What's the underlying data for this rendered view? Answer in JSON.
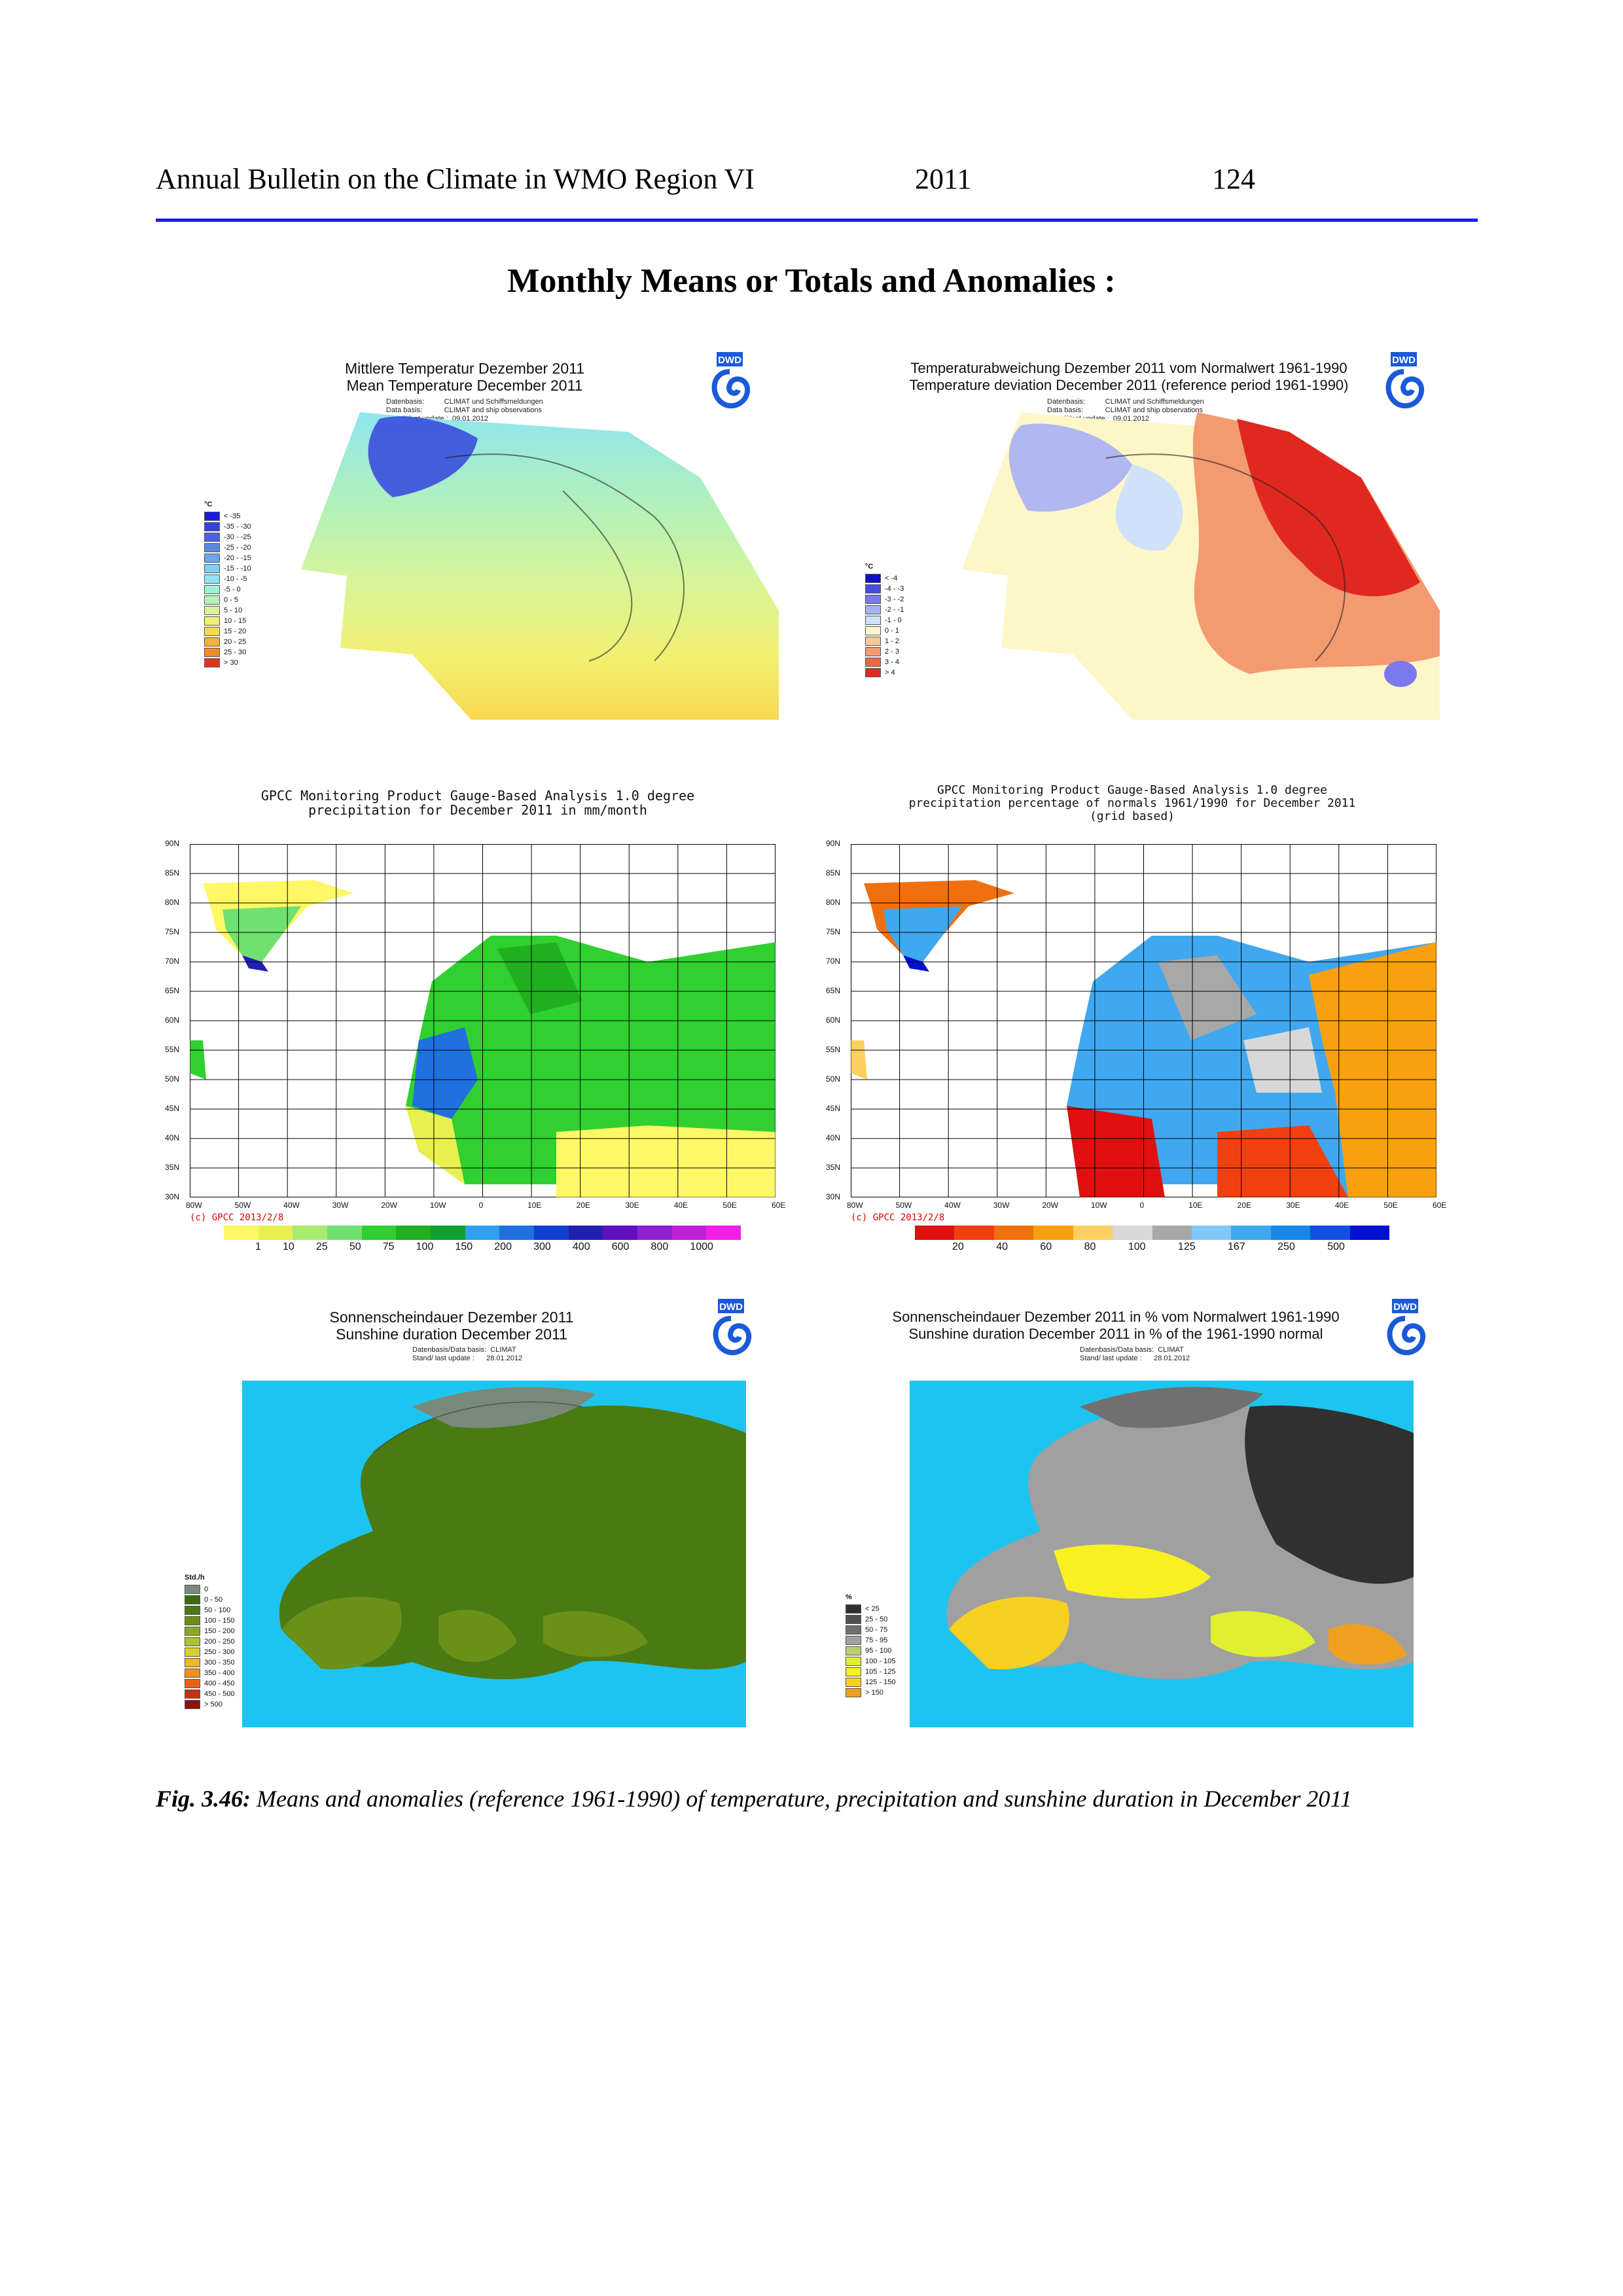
{
  "header": {
    "left": "Annual Bulletin on the Climate in WMO Region VI",
    "year": "2011",
    "page": "124"
  },
  "page_title": "Monthly Means or Totals and Anomalies :",
  "dwd_logo": "DWD",
  "panels": {
    "temp_mean": {
      "title_de": "Mittlere Temperatur Dezember 2011",
      "title_en": "Mean Temperature December 2011",
      "meta": "Datenbasis:          CLIMAT und Schiffsmeldungen\nData basis:           CLIMAT and ship observations\nStand/ last update :  09.01.2012",
      "legend_unit": "°C",
      "legend": [
        "< -35",
        "-35 - -30",
        "-30 - -25",
        "-25 - -20",
        "-20 - -15",
        "-15 - -10",
        "-10 - -5",
        "-5 - 0",
        "0 - 5",
        "5 - 10",
        "10 - 15",
        "15 - 20",
        "20 - 25",
        "25 - 30",
        "> 30"
      ],
      "colors": [
        "#1a1ae0",
        "#3344dd",
        "#4a62e0",
        "#5a86e6",
        "#68a6ee",
        "#7cd0f4",
        "#8fe6ee",
        "#9ff0d8",
        "#b8f2b4",
        "#d8f49a",
        "#f2f070",
        "#f8d850",
        "#f6b038",
        "#f08a2a",
        "#e83020"
      ]
    },
    "temp_anom": {
      "title_de": "Temperaturabweichung Dezember 2011 vom Normalwert 1961-1990",
      "title_en": "Temperature deviation December 2011 (reference period 1961-1990)",
      "meta": "Datenbasis:          CLIMAT und Schiffsmeldungen\nData basis:           CLIMAT and ship observations\nStand/ last update :  09.01.2012",
      "legend_unit": "°C",
      "legend": [
        "< -4",
        "-4 - -3",
        "-3 - -2",
        "-2 - -1",
        "-1 - 0",
        "0 - 1",
        "1 - 2",
        "2 - 3",
        "3 - 4",
        "> 4"
      ],
      "colors": [
        "#1010c8",
        "#4a4ae0",
        "#7a7aee",
        "#a8b0f4",
        "#cfe2fa",
        "#fdf6c8",
        "#f8c898",
        "#f49a70",
        "#ee6648",
        "#e02820"
      ]
    },
    "precip": {
      "title_l1": "GPCC Monitoring Product Gauge-Based Analysis 1.0 degree",
      "title_l2": "precipitation for December  2011 in mm/month",
      "copyright": "(c) GPCC 2013/2/8",
      "colorbar_labels": [
        "1",
        "10",
        "25",
        "50",
        "75",
        "100",
        "150",
        "200",
        "300",
        "400",
        "600",
        "800",
        "1000"
      ],
      "colorbar_colors": [
        "#fff866",
        "#e8f050",
        "#a8ec70",
        "#70e070",
        "#30d030",
        "#20b020",
        "#10a030",
        "#30a0f0",
        "#2070e0",
        "#1040d0",
        "#2020b0",
        "#6010c0",
        "#9020d0",
        "#c020d8",
        "#f020e8"
      ]
    },
    "precip_pct": {
      "title_l1": "GPCC Monitoring Product Gauge-Based Analysis 1.0 degree",
      "title_l2": "precipitation percentage of normals 1961/1990 for December  2011",
      "title_l3": "(grid based)",
      "copyright": "(c) GPCC 2013/2/8",
      "colorbar_labels": [
        "20",
        "40",
        "60",
        "80",
        "100",
        "125",
        "167",
        "250",
        "500"
      ],
      "colorbar_colors": [
        "#e01010",
        "#f04010",
        "#f07010",
        "#f8a010",
        "#fcd060",
        "#d8d8d8",
        "#a8a8a8",
        "#80c8f8",
        "#40a8f0",
        "#1888e8",
        "#1050e0",
        "#0010d0"
      ]
    },
    "sun": {
      "title_de": "Sonnenscheindauer Dezember 2011",
      "title_en": "Sunshine duration December 2011",
      "meta": "Datenbasis/Data basis:  CLIMAT\nStand/ last update :      28.01.2012",
      "legend_unit": "Std./h",
      "legend": [
        "0",
        "0 - 50",
        "50 - 100",
        "100 - 150",
        "150 - 200",
        "200 - 250",
        "250 - 300",
        "300 - 350",
        "350 - 400",
        "400 - 450",
        "450 - 500",
        "> 500"
      ],
      "colors": [
        "#7a8a7a",
        "#3a6a10",
        "#4a7a14",
        "#6a9018",
        "#8aa820",
        "#b0c030",
        "#d8d030",
        "#f0b828",
        "#f09020",
        "#e86018",
        "#c83010",
        "#901008"
      ]
    },
    "sun_pct": {
      "title_de": "Sonnenscheindauer Dezember 2011 in % vom Normalwert 1961-1990",
      "title_en": "Sunshine duration December 2011 in % of the 1961-1990 normal",
      "meta": "Datenbasis/Data basis:  CLIMAT\nStand/ last update :      28.01.2012",
      "legend_unit": "%",
      "legend": [
        "< 25",
        "25 - 50",
        "50 - 75",
        "75 - 95",
        "95 - 100",
        "100 - 105",
        "105 - 125",
        "125 - 150",
        "> 150"
      ],
      "colors": [
        "#303030",
        "#505050",
        "#707070",
        "#a0a0a0",
        "#b8d070",
        "#e0f030",
        "#f8f020",
        "#f8d020",
        "#f0a020"
      ]
    }
  },
  "grid_axes": {
    "y": [
      "90N",
      "85N",
      "80N",
      "75N",
      "70N",
      "65N",
      "60N",
      "55N",
      "50N",
      "45N",
      "40N",
      "35N",
      "30N"
    ],
    "x": [
      "80W",
      "50W",
      "40W",
      "30W",
      "20W",
      "10W",
      "0",
      "10E",
      "20E",
      "30E",
      "40E",
      "50E",
      "60E"
    ]
  },
  "caption": {
    "label": "Fig. 3.46:",
    "text": " Means and anomalies (reference 1961-1990) of temperature, precipitation and sunshine duration in December 2011"
  }
}
